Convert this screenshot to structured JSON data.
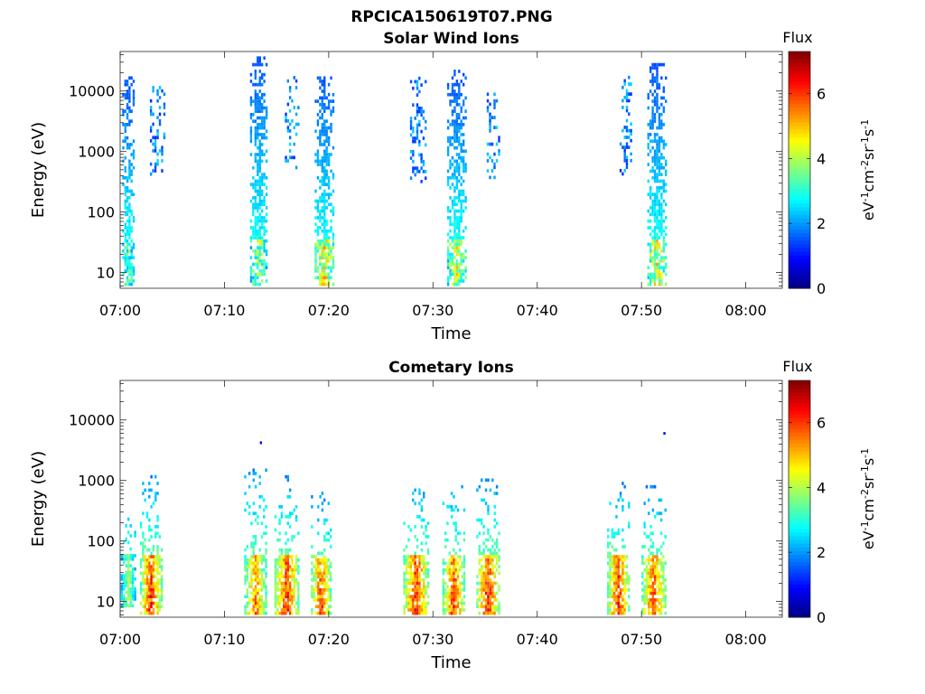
{
  "figure": {
    "title": "RPCICA150619T07.PNG",
    "background": "#ffffff"
  },
  "chart_data": [
    {
      "type": "heatmap",
      "title": "Solar Wind Ions",
      "xlabel": "Time",
      "ylabel": "Energy (eV)",
      "y_scale": "log",
      "ylim": [
        5.5,
        45000
      ],
      "yticks": [
        10,
        100,
        1000,
        10000
      ],
      "ytick_labels": [
        "10",
        "100",
        "1000",
        "10000"
      ],
      "xlim": [
        "07:00",
        "08:03.5"
      ],
      "xticks": [
        "07:00",
        "07:10",
        "07:20",
        "07:30",
        "07:40",
        "07:50",
        "08:00"
      ],
      "colorbar": {
        "label": "Flux",
        "unit": "eV-1cm-2sr-1s-1",
        "min": 0,
        "max": 7.3,
        "ticks": [
          0,
          2,
          4,
          6
        ],
        "colormap": "jet"
      },
      "bursts": [
        {
          "time": "07:00.8",
          "width_min": 1.2,
          "e_min": 6,
          "e_max": 16000,
          "peak_flux": 4.2,
          "kind": "sw"
        },
        {
          "time": "07:03.6",
          "width_min": 1.5,
          "e_min": 350,
          "e_max": 11000,
          "peak_flux": 2.5,
          "kind": "sw_sparse"
        },
        {
          "time": "07:13.3",
          "width_min": 1.7,
          "e_min": 6,
          "e_max": 35000,
          "peak_flux": 4.8,
          "kind": "sw"
        },
        {
          "time": "07:16.5",
          "width_min": 1.4,
          "e_min": 450,
          "e_max": 17000,
          "peak_flux": 2.4,
          "kind": "sw_sparse"
        },
        {
          "time": "07:19.6",
          "width_min": 1.9,
          "e_min": 6,
          "e_max": 16000,
          "peak_flux": 5.6,
          "kind": "sw"
        },
        {
          "time": "07:28.6",
          "width_min": 1.6,
          "e_min": 300,
          "e_max": 16000,
          "peak_flux": 2.4,
          "kind": "sw_sparse"
        },
        {
          "time": "07:32.3",
          "width_min": 1.9,
          "e_min": 6,
          "e_max": 20000,
          "peak_flux": 5.2,
          "kind": "sw"
        },
        {
          "time": "07:35.8",
          "width_min": 1.3,
          "e_min": 350,
          "e_max": 9000,
          "peak_flux": 2.4,
          "kind": "sw_sparse"
        },
        {
          "time": "07:48.5",
          "width_min": 1.2,
          "e_min": 400,
          "e_max": 16000,
          "peak_flux": 2.3,
          "kind": "sw_sparse"
        },
        {
          "time": "07:51.5",
          "width_min": 1.9,
          "e_min": 6,
          "e_max": 28000,
          "peak_flux": 5.6,
          "kind": "sw"
        }
      ]
    },
    {
      "type": "heatmap",
      "title": "Cometary Ions",
      "xlabel": "Time",
      "ylabel": "Energy (eV)",
      "y_scale": "log",
      "ylim": [
        5.5,
        45000
      ],
      "yticks": [
        10,
        100,
        1000,
        10000
      ],
      "ytick_labels": [
        "10",
        "100",
        "1000",
        "10000"
      ],
      "xlim": [
        "07:00",
        "08:03.5"
      ],
      "xticks": [
        "07:00",
        "07:10",
        "07:20",
        "07:30",
        "07:40",
        "07:50",
        "08:00"
      ],
      "colorbar": {
        "label": "Flux",
        "unit": "eV-1cm-2sr-1s-1",
        "min": 0,
        "max": 7.3,
        "ticks": [
          0,
          2,
          4,
          6
        ],
        "colormap": "jet"
      },
      "bursts": [
        {
          "time": "07:00.8",
          "width_min": 1.5,
          "e_min": 8,
          "e_max": 400,
          "peak_flux": 4.5,
          "kind": "cometary"
        },
        {
          "time": "07:03.0",
          "width_min": 2.2,
          "e_min": 6,
          "e_max": 1100,
          "peak_flux": 7.1,
          "kind": "cometary"
        },
        {
          "time": "07:13.0",
          "width_min": 2.2,
          "e_min": 6,
          "e_max": 1500,
          "peak_flux": 6.4,
          "kind": "cometary"
        },
        {
          "time": "07:16.0",
          "width_min": 2.4,
          "e_min": 6,
          "e_max": 1100,
          "peak_flux": 7.1,
          "kind": "cometary"
        },
        {
          "time": "07:19.3",
          "width_min": 2.0,
          "e_min": 6,
          "e_max": 600,
          "peak_flux": 6.9,
          "kind": "cometary"
        },
        {
          "time": "07:28.4",
          "width_min": 2.5,
          "e_min": 6,
          "e_max": 1100,
          "peak_flux": 7.2,
          "kind": "cometary"
        },
        {
          "time": "07:32.0",
          "width_min": 2.2,
          "e_min": 6,
          "e_max": 900,
          "peak_flux": 6.9,
          "kind": "cometary"
        },
        {
          "time": "07:35.3",
          "width_min": 2.3,
          "e_min": 6,
          "e_max": 1000,
          "peak_flux": 7.2,
          "kind": "cometary"
        },
        {
          "time": "07:47.8",
          "width_min": 2.2,
          "e_min": 6,
          "e_max": 900,
          "peak_flux": 7.1,
          "kind": "cometary"
        },
        {
          "time": "07:51.2",
          "width_min": 2.4,
          "e_min": 6,
          "e_max": 800,
          "peak_flux": 6.9,
          "kind": "cometary"
        }
      ],
      "isolated_points": [
        {
          "time": "07:13.5",
          "energy": 4200,
          "flux": 1.0
        },
        {
          "time": "07:52.2",
          "energy": 6000,
          "flux": 1.0
        }
      ]
    }
  ]
}
